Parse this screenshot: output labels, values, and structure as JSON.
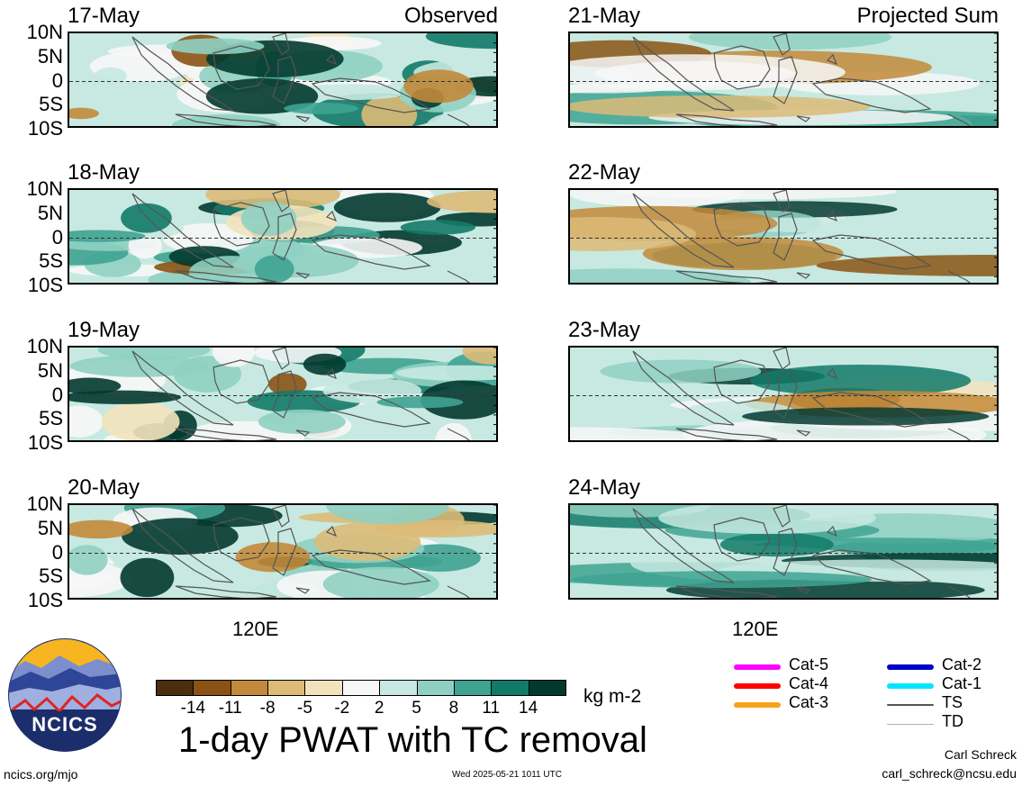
{
  "chart_data": {
    "type": "heatmap",
    "title": "1-day PWAT with TC removal",
    "units": "kg m-2",
    "lat_ticks": [
      "10N",
      "5N",
      "0",
      "5S",
      "10S"
    ],
    "lon_ticks": [
      "120E"
    ],
    "columns": [
      {
        "tag": "Observed",
        "dates": [
          "17-May",
          "18-May",
          "19-May",
          "20-May"
        ]
      },
      {
        "tag": "Projected Sum",
        "dates": [
          "21-May",
          "22-May",
          "23-May",
          "24-May"
        ]
      }
    ],
    "colorbar": {
      "ticks": [
        "-14",
        "-11",
        "-8",
        "-5",
        "-2",
        "2",
        "5",
        "8",
        "11",
        "14"
      ],
      "colors": [
        "#4a2e0d",
        "#8a5313",
        "#c28a3a",
        "#dcbb78",
        "#f3e3bd",
        "#f7f7f7",
        "#c7e9e1",
        "#8fd0c2",
        "#3fa392",
        "#137a69",
        "#033a30"
      ]
    },
    "tc_legend": [
      {
        "label": "Cat-5",
        "color": "#ff00ff"
      },
      {
        "label": "Cat-4",
        "color": "#ff0000"
      },
      {
        "label": "Cat-3",
        "color": "#f7a21b"
      },
      {
        "label": "Cat-2",
        "color": "#0000cc"
      },
      {
        "label": "Cat-1",
        "color": "#00e5ff"
      },
      {
        "label": "TS",
        "color": "#555555"
      },
      {
        "label": "TD",
        "color": "#b0b0b0"
      }
    ]
  },
  "footer": {
    "website": "ncics.org/mjo",
    "timestamp": "Wed 2025-05-21 1011 UTC",
    "author": "Carl Schreck",
    "email": "carl_schreck@ncsu.edu"
  },
  "logo": {
    "text": "NCICS"
  }
}
